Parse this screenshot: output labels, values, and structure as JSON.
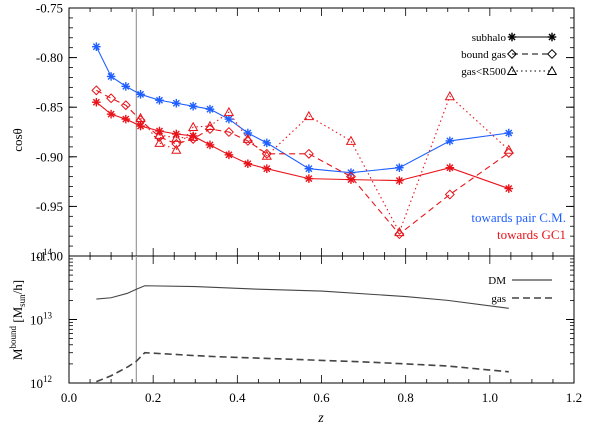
{
  "colors": {
    "blue": "#1f5fff",
    "red": "#e8131a",
    "black": "#000000",
    "gray": "#444444",
    "vline": "#9a9a9a"
  },
  "chart_data": [
    {
      "type": "line",
      "ylabel": "cosθ",
      "xlim": [
        0.0,
        1.2
      ],
      "ylim": [
        -1.0,
        -0.75
      ],
      "yticks": [
        "-1.00",
        "-0.95",
        "-0.90",
        "-0.85",
        "-0.80",
        "-0.75"
      ],
      "vertical_line_x": 0.16,
      "legend": {
        "position": "top-right",
        "entries": [
          {
            "label": "subhalo",
            "style": "solid",
            "marker": "asterisk"
          },
          {
            "label": "bound gas",
            "style": "dashed",
            "marker": "diamond"
          },
          {
            "label": "gas<R500",
            "style": "dotted",
            "marker": "triangle"
          }
        ]
      },
      "annotations": [
        "towards pair C.M.",
        "towards GC1"
      ],
      "series": [
        {
          "group": "towards pair C.M.",
          "style": "solid",
          "marker": "asterisk",
          "color": "#1f5fff",
          "x": [
            0.065,
            0.1,
            0.135,
            0.17,
            0.215,
            0.255,
            0.295,
            0.335,
            0.38,
            0.425,
            0.47,
            0.57,
            0.67,
            0.785,
            0.905,
            1.045
          ],
          "y": [
            -0.789,
            -0.819,
            -0.829,
            -0.837,
            -0.843,
            -0.846,
            -0.849,
            -0.852,
            -0.862,
            -0.876,
            -0.886,
            -0.912,
            -0.916,
            -0.911,
            -0.884,
            -0.876
          ]
        },
        {
          "group": "towards GC1",
          "style": "solid",
          "marker": "asterisk",
          "color": "#e8131a",
          "x": [
            0.065,
            0.1,
            0.135,
            0.17,
            0.215,
            0.255,
            0.295,
            0.335,
            0.38,
            0.425,
            0.47,
            0.57,
            0.67,
            0.785,
            0.905,
            1.045
          ],
          "y": [
            -0.845,
            -0.857,
            -0.862,
            -0.869,
            -0.874,
            -0.877,
            -0.879,
            -0.888,
            -0.898,
            -0.907,
            -0.912,
            -0.922,
            -0.923,
            -0.924,
            -0.911,
            -0.932
          ]
        },
        {
          "group": "towards GC1",
          "style": "dashed",
          "marker": "diamond",
          "color": "#e8131a",
          "x": [
            0.065,
            0.1,
            0.135,
            0.17,
            0.215,
            0.255,
            0.295,
            0.335,
            0.38,
            0.425,
            0.47,
            0.57,
            0.67,
            0.785,
            0.905,
            1.045
          ],
          "y": [
            -0.833,
            -0.841,
            -0.848,
            -0.863,
            -0.88,
            -0.887,
            -0.882,
            -0.872,
            -0.875,
            -0.884,
            -0.897,
            -0.897,
            -0.92,
            -0.978,
            -0.938,
            -0.896
          ]
        },
        {
          "group": "towards GC1",
          "style": "dotted",
          "marker": "triangle",
          "color": "#e8131a",
          "x": [
            0.17,
            0.215,
            0.255,
            0.295,
            0.335,
            0.38,
            0.425,
            0.47,
            0.57,
            0.67,
            0.785,
            0.905,
            1.045
          ],
          "y": [
            -0.861,
            -0.886,
            -0.893,
            -0.87,
            -0.869,
            -0.855,
            -0.882,
            -0.899,
            -0.859,
            -0.884,
            -0.976,
            -0.839,
            -0.893
          ]
        },
        {
          "group": "towards GC1",
          "style": "dotted",
          "marker": "triangle",
          "color": "#e8131a",
          "x": [
            0.215,
            0.255,
            0.295
          ],
          "y": [
            -0.878,
            -0.881,
            -0.88
          ]
        }
      ]
    },
    {
      "type": "line",
      "xlabel": "z",
      "ylabel_main": "M",
      "ylabel_sup": "bound",
      "ylabel_unit_open": " [M",
      "ylabel_unit_sub": "sun",
      "ylabel_unit_close": "/h]",
      "xlim": [
        0.0,
        1.2
      ],
      "xticks": [
        "0.0",
        "0.2",
        "0.4",
        "0.6",
        "0.8",
        "1.0",
        "1.2"
      ],
      "yscale": "log",
      "ylim": [
        1000000000000.0,
        100000000000000.0
      ],
      "yticks": [
        {
          "value": 1000000000000.0,
          "base": "10",
          "exp": "12"
        },
        {
          "value": 10000000000000.0,
          "base": "10",
          "exp": "13"
        },
        {
          "value": 100000000000000.0,
          "base": "10",
          "exp": "14"
        }
      ],
      "vertical_line_x": 0.16,
      "legend": {
        "position": "top-right",
        "entries": [
          {
            "label": "DM",
            "style": "solid"
          },
          {
            "label": "gas",
            "style": "dashed"
          }
        ]
      },
      "series": [
        {
          "name": "DM",
          "style": "solid",
          "color": "#444444",
          "x": [
            0.065,
            0.1,
            0.14,
            0.16,
            0.18,
            0.3,
            0.45,
            0.6,
            0.8,
            0.9,
            1.045
          ],
          "y": [
            21000000000000.0,
            22000000000000.0,
            26000000000000.0,
            30000000000000.0,
            34000000000000.0,
            33000000000000.0,
            30000000000000.0,
            28000000000000.0,
            23000000000000.0,
            20000000000000.0,
            15000000000000.0
          ]
        },
        {
          "name": "gas",
          "style": "dashed",
          "color": "#444444",
          "x": [
            0.065,
            0.1,
            0.14,
            0.16,
            0.18,
            0.3,
            0.35,
            0.5,
            0.7,
            0.8,
            0.9,
            1.045
          ],
          "y": [
            1050000000000.0,
            1300000000000.0,
            1800000000000.0,
            2200000000000.0,
            3000000000000.0,
            2700000000000.0,
            2600000000000.0,
            2400000000000.0,
            2150000000000.0,
            2000000000000.0,
            1850000000000.0,
            1500000000000.0
          ]
        }
      ]
    }
  ]
}
